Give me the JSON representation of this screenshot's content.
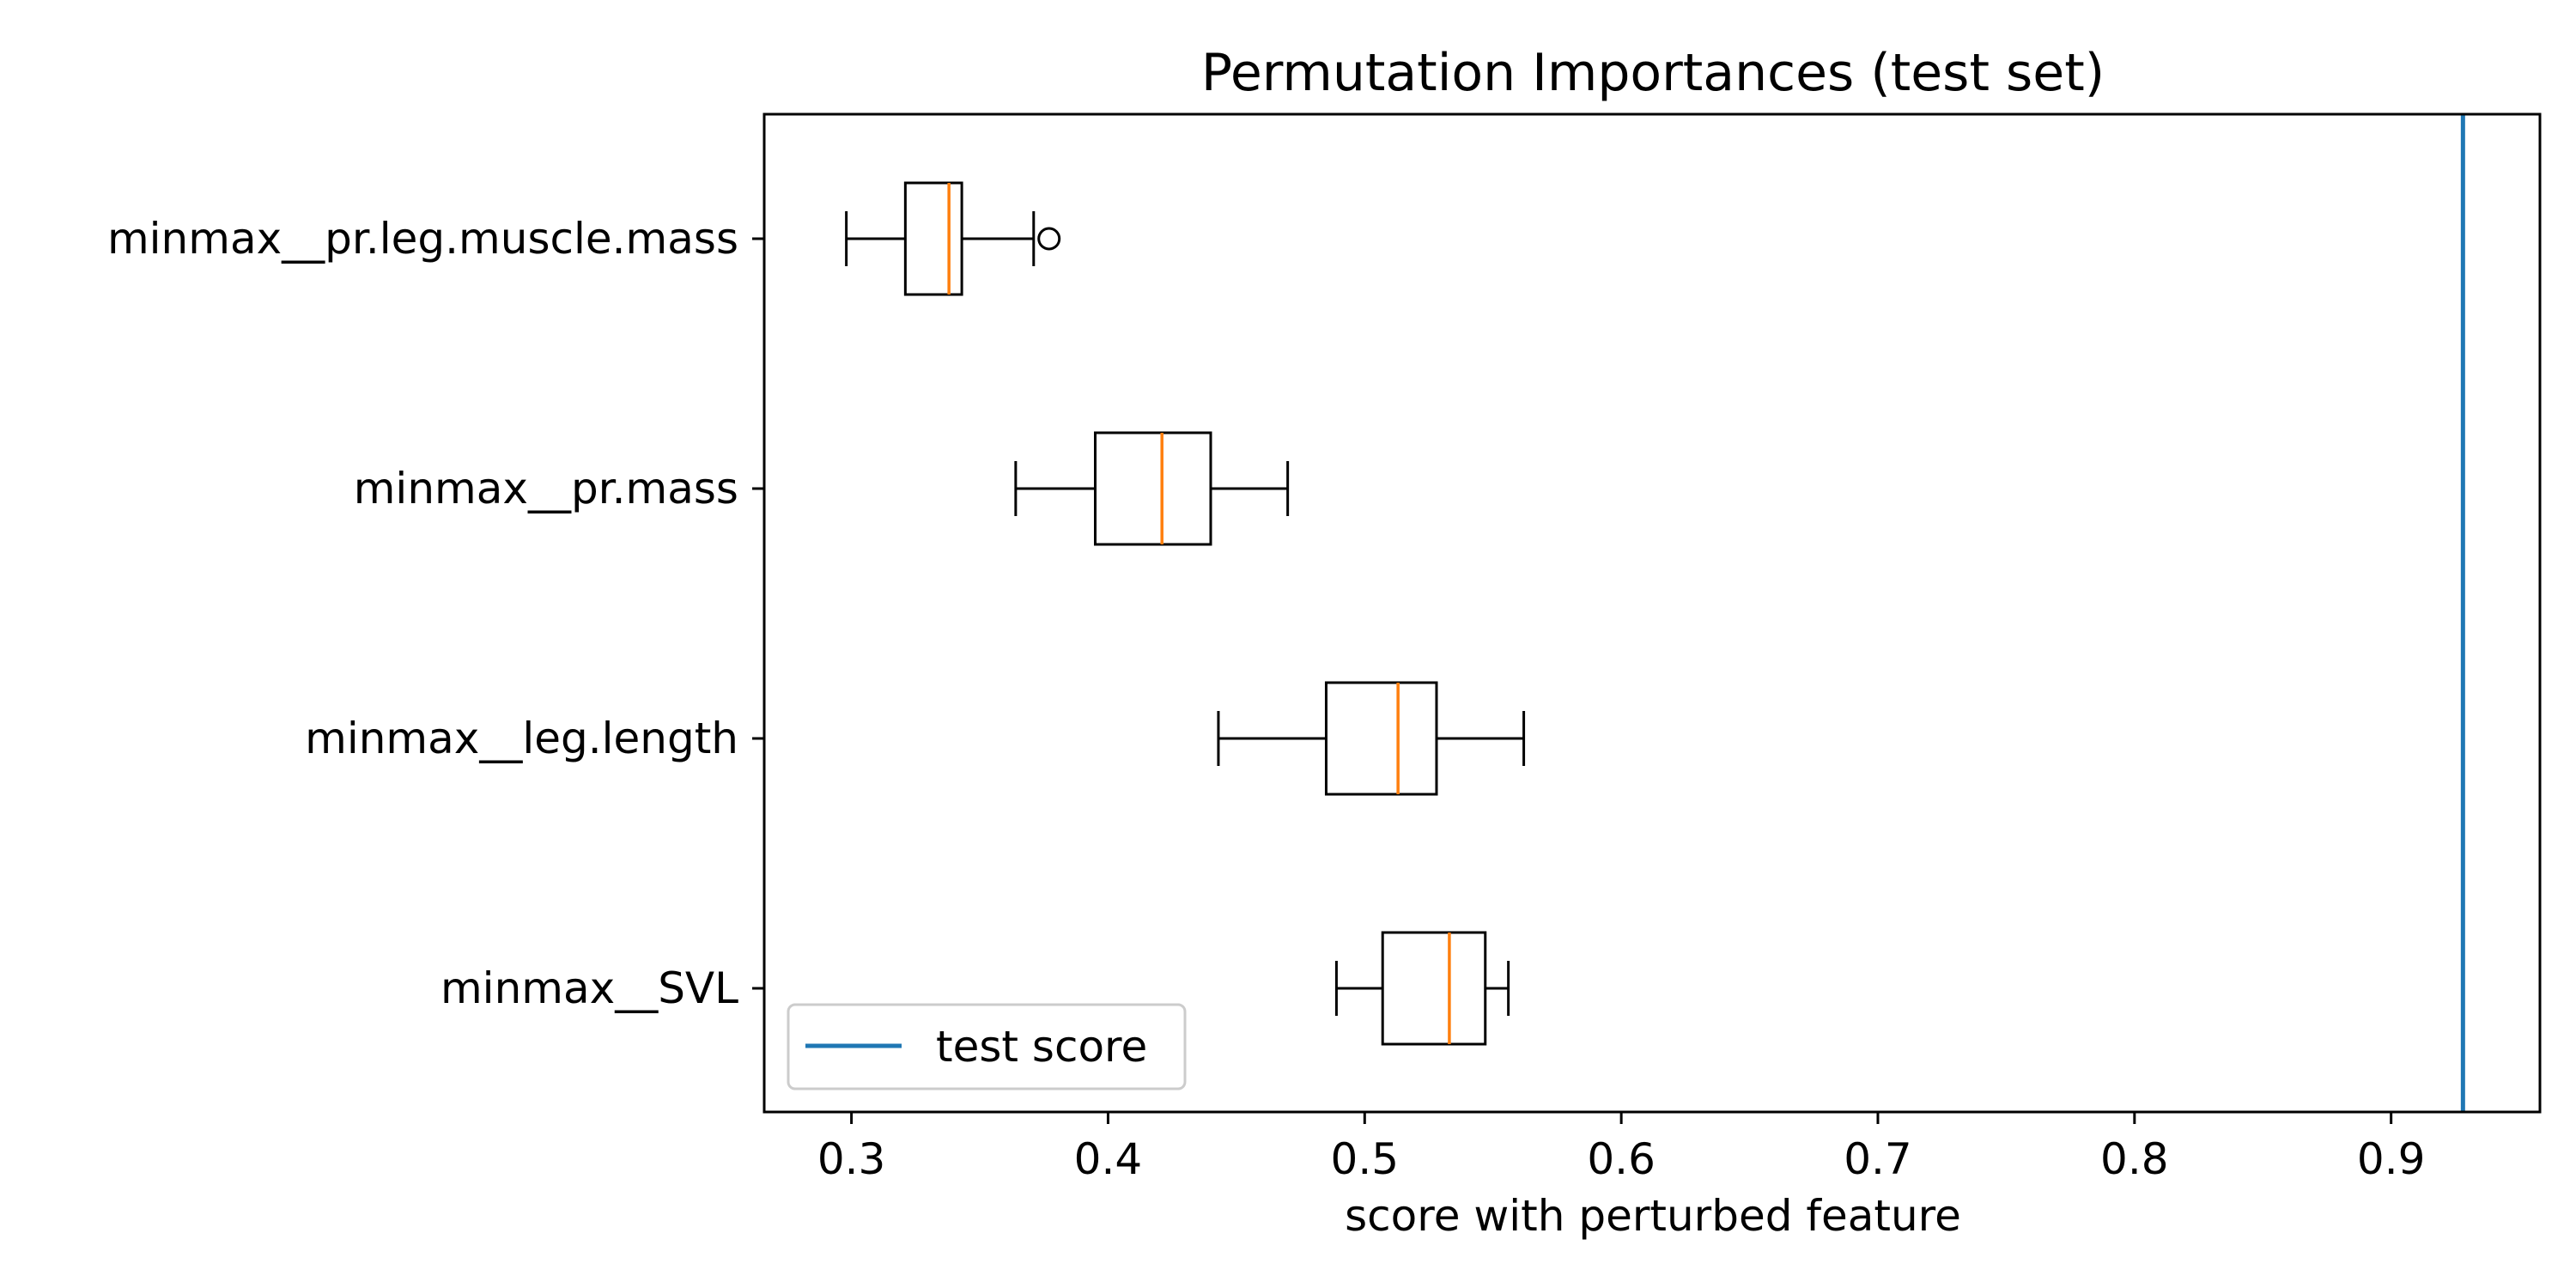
{
  "chart_data": {
    "type": "boxplot",
    "orientation": "horizontal",
    "title": "Permutation Importances (test set)",
    "xlabel": "score with perturbed feature",
    "ylabel": "",
    "xlim": [
      0.266,
      0.958
    ],
    "xticks": [
      0.3,
      0.4,
      0.5,
      0.6,
      0.7,
      0.8,
      0.9
    ],
    "xtick_labels": [
      "0.3",
      "0.4",
      "0.5",
      "0.6",
      "0.7",
      "0.8",
      "0.9"
    ],
    "categories": [
      "minmax__pr.leg.muscle.mass",
      "minmax__pr.mass",
      "minmax__leg.length",
      "minmax__SVL"
    ],
    "boxes": [
      {
        "category": "minmax__pr.leg.muscle.mass",
        "whisker_low": 0.298,
        "q1": 0.321,
        "median": 0.338,
        "q3": 0.343,
        "whisker_high": 0.371,
        "outliers": [
          0.377
        ]
      },
      {
        "category": "minmax__pr.mass",
        "whisker_low": 0.364,
        "q1": 0.395,
        "median": 0.421,
        "q3": 0.44,
        "whisker_high": 0.47,
        "outliers": []
      },
      {
        "category": "minmax__leg.length",
        "whisker_low": 0.443,
        "q1": 0.485,
        "median": 0.513,
        "q3": 0.528,
        "whisker_high": 0.562,
        "outliers": []
      },
      {
        "category": "minmax__SVL",
        "whisker_low": 0.489,
        "q1": 0.507,
        "median": 0.533,
        "q3": 0.547,
        "whisker_high": 0.556,
        "outliers": []
      }
    ],
    "reference_line": {
      "label": "test score",
      "value": 0.928
    },
    "legend": {
      "position": "lower-left",
      "entries": [
        "test score"
      ]
    },
    "grid": false,
    "colors": {
      "box": "#000000",
      "median": "#ff7f0e",
      "reference_line": "#1f77b4"
    }
  }
}
